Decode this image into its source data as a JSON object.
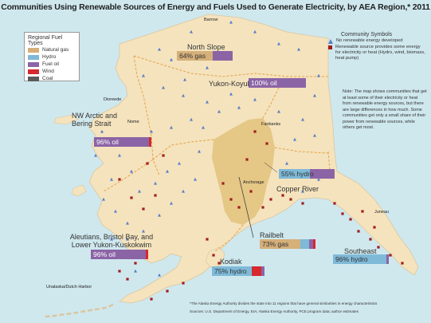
{
  "title": "Communities Using Renewable Sources of Energy and Fuels Used to Generate Electricity, by AEA Region,* 2011",
  "colors": {
    "water": "#cfe8ee",
    "land": "#f4e3bd",
    "railbelt": "#e2c27c",
    "boundary": "#e8a14a",
    "natural_gas": "#d5b07a",
    "hydro": "#7fb9d8",
    "fuel_oil": "#8b64a6",
    "wind": "#d6282d",
    "coal": "#5b5b5b",
    "no_renewable": "#5a7ec9",
    "renewable": "#a01e1e"
  },
  "legend": {
    "title": "Regional Fuel Types",
    "items": [
      "Natural gas",
      "Hydro",
      "Fuel oil",
      "Wind",
      "Coal"
    ]
  },
  "symbols": {
    "title": "Community Symbols",
    "no_renewable": "No renewable energy developed",
    "renewable": "Renewable source provides some energy for electricity or heat (Hydro, wind, biomass, heat pump)"
  },
  "note": "Note: The map shows communities that get at least some of their electricity or heat from renewable energy sources, but there are large differences in how much. Some communities get only a small share of their power from renewable sources, while others get most.",
  "footnote": {
    "line1": "*The Alaska Energy Authority divides the state into 11 regions that have general similarities in energy characteristics",
    "line2": "Sources: U.S. Department of Energy, EIA; Alaska Energy Authority, PCE program data; author estimates"
  },
  "places": {
    "barrow": "Barrow",
    "dillingham": "Dioreede",
    "nome": "Nome",
    "fairbanks": "Fairbanks",
    "anchorage": "Anchorage",
    "juneau": "Juneau",
    "unalaska": "Unalaska/Dutch Harbor"
  },
  "regions": [
    {
      "key": "north_slope",
      "name": "North Slope",
      "label": "64% gas",
      "fuel": "natural_gas",
      "share": 64
    },
    {
      "key": "yukon",
      "name": "Yukon-Koyukuk",
      "label": "100% oil",
      "fuel": "fuel_oil",
      "share": 100
    },
    {
      "key": "nw_arctic",
      "name": "NW Arctic and Bering Strait",
      "label": "96% oil",
      "fuel": "fuel_oil",
      "share": 96
    },
    {
      "key": "copper_river",
      "name": "Copper River",
      "label": "55% hydro",
      "fuel": "hydro",
      "share": 55
    },
    {
      "key": "aleutians",
      "name": "Aleutians, Bristol Bay, and Lower Yukon-Kuskokwim",
      "label": "96% oil",
      "fuel": "fuel_oil",
      "share": 96
    },
    {
      "key": "railbelt",
      "name": "Railbelt",
      "label": "73% gas",
      "fuel": "natural_gas",
      "share": 73
    },
    {
      "key": "kodiak",
      "name": "Kodiak",
      "label": "75% hydro",
      "fuel": "hydro",
      "share": 75
    },
    {
      "key": "southeast",
      "name": "Southeast",
      "label": "96% hydro",
      "fuel": "hydro",
      "share": 96
    }
  ]
}
